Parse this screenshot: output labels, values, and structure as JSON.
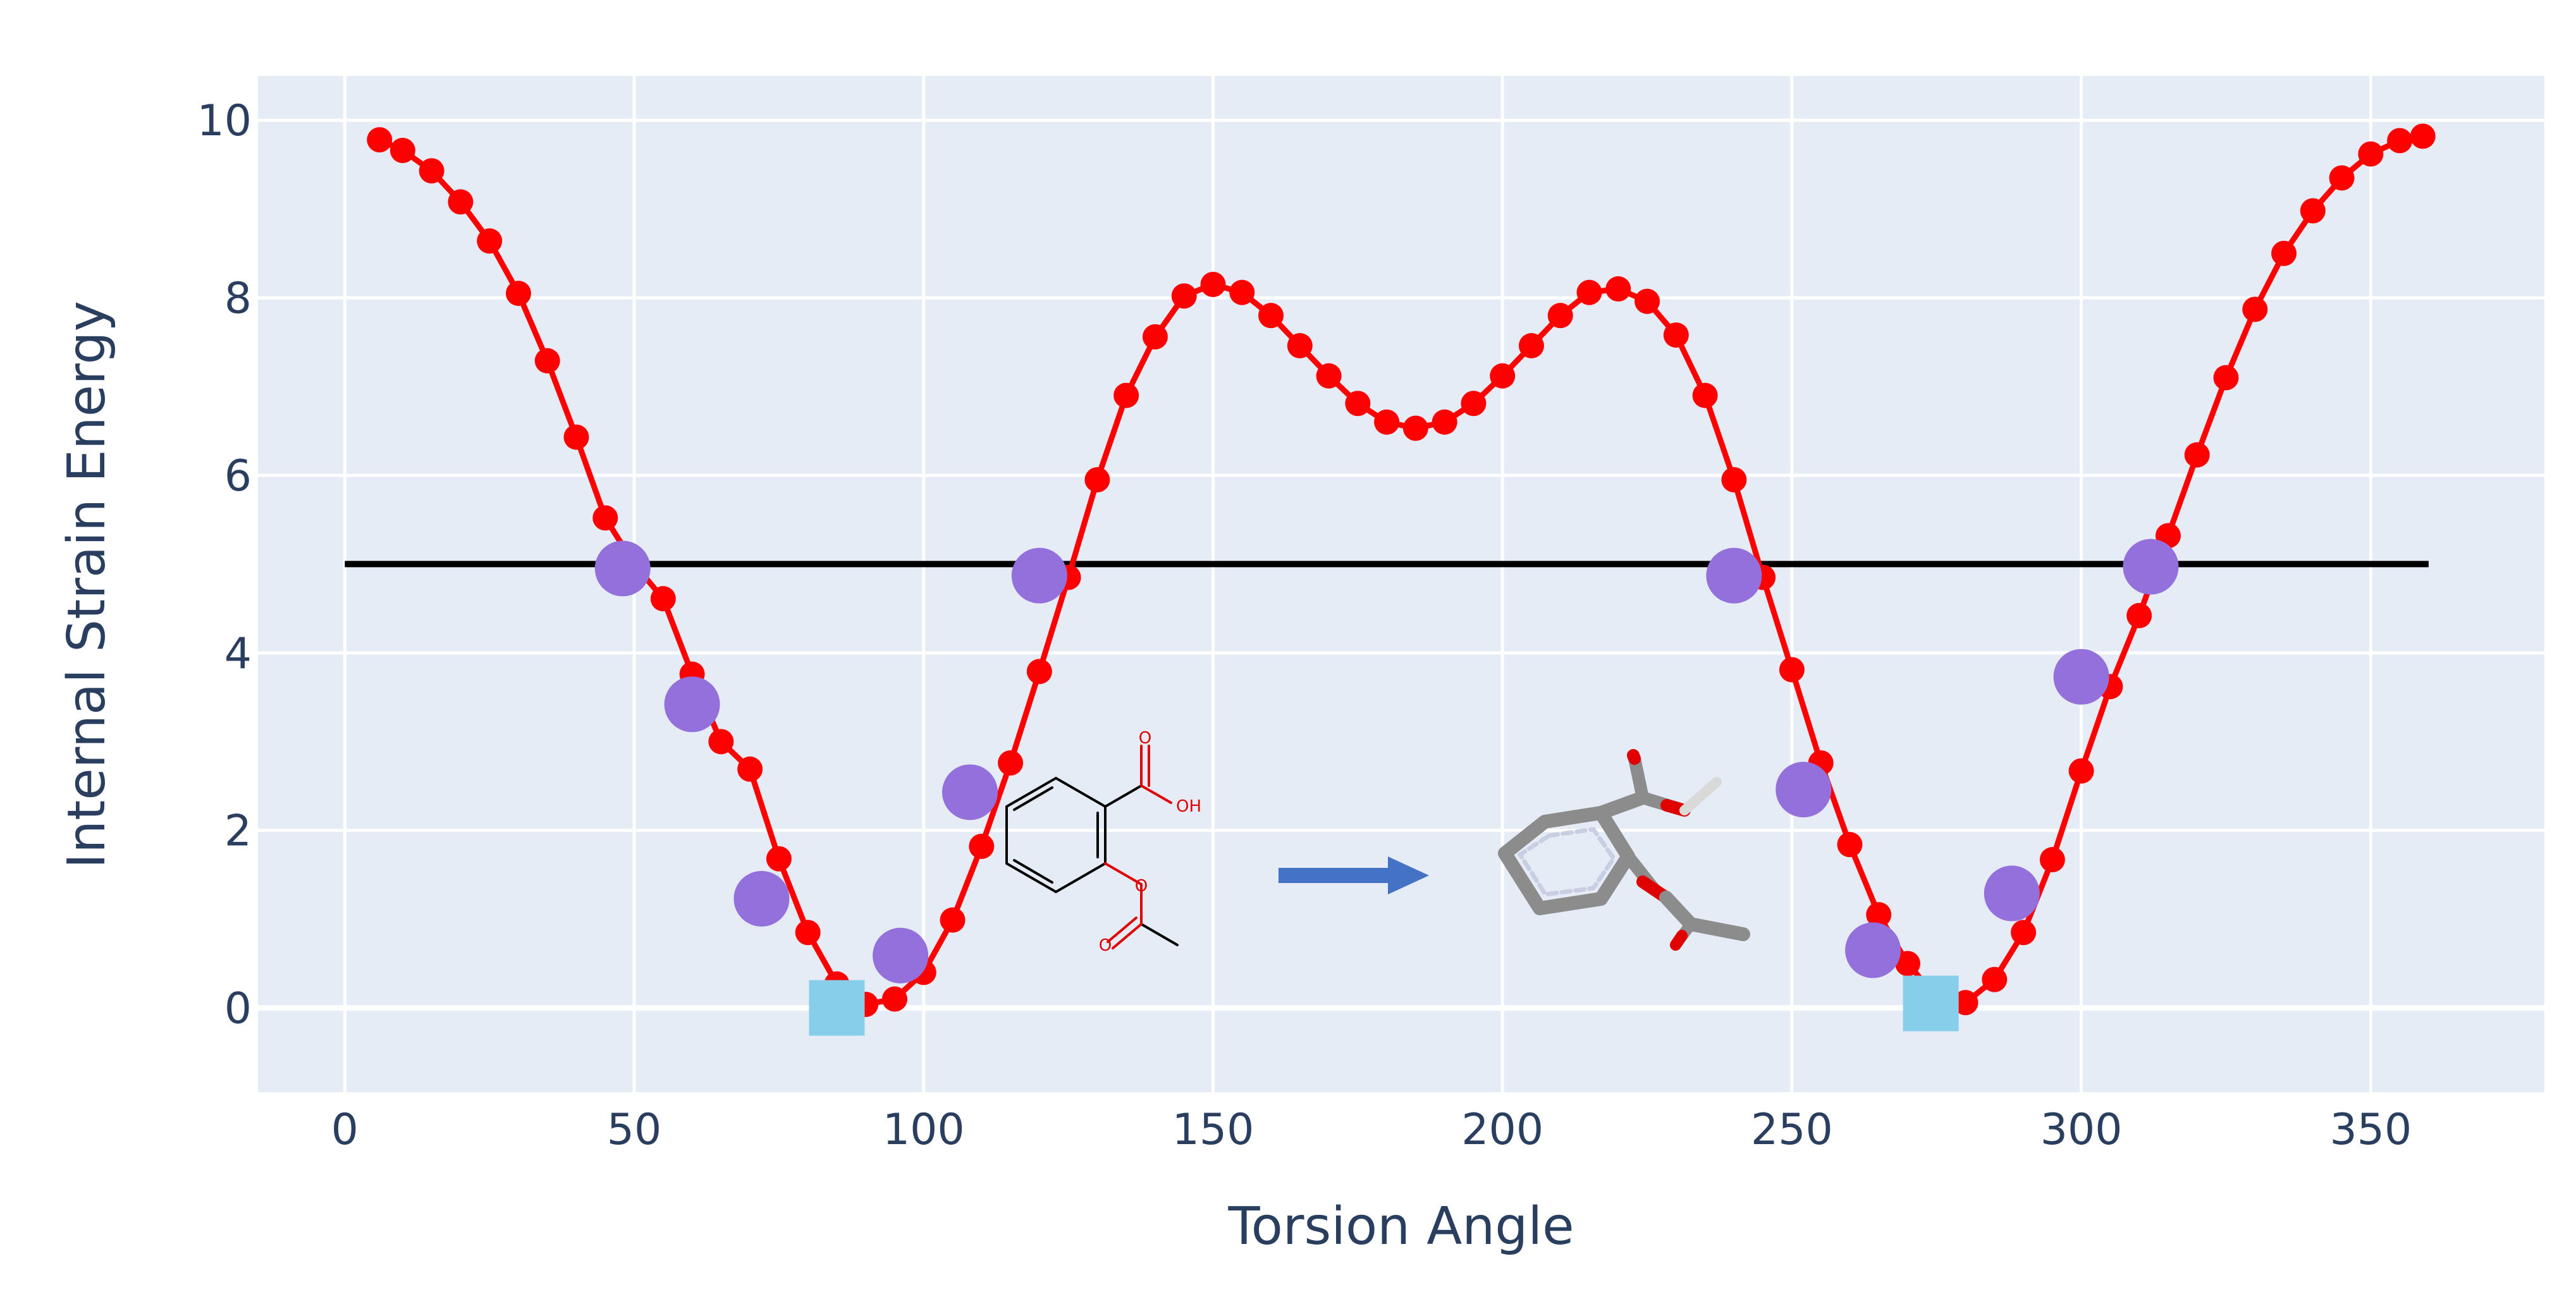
{
  "chart_data": {
    "type": "scatter",
    "title": "",
    "xlabel": "Torsion Angle",
    "ylabel": "Internal Strain Energy",
    "xlim": [
      -15,
      380
    ],
    "ylim": [
      -0.95,
      10.5
    ],
    "x_ticks": [
      0,
      50,
      100,
      150,
      200,
      250,
      300,
      350
    ],
    "y_ticks": [
      0,
      2,
      4,
      6,
      8,
      10
    ],
    "grid": true,
    "legend": "none",
    "series": [
      {
        "kind": "line+markers",
        "color": "#ff0000",
        "x": [
          6,
          10,
          15,
          20,
          25,
          30,
          35,
          40,
          45,
          50,
          55,
          60,
          65,
          70,
          75,
          80,
          85,
          90,
          95,
          100,
          105,
          110,
          115,
          120,
          125,
          130,
          135,
          140,
          145,
          150,
          155,
          160,
          165,
          170,
          175,
          180,
          185,
          190,
          195,
          200,
          205,
          210,
          215,
          220,
          225,
          230,
          235,
          240,
          245,
          250,
          255,
          260,
          265,
          270,
          275,
          280,
          285,
          290,
          295,
          300,
          305,
          310,
          315,
          320,
          325,
          330,
          335,
          340,
          345,
          350,
          355,
          359
        ],
        "y": [
          9.78,
          9.66,
          9.43,
          9.08,
          8.64,
          8.05,
          7.29,
          6.43,
          5.52,
          5.0,
          4.61,
          3.76,
          3.0,
          2.69,
          1.68,
          0.85,
          0.27,
          0.04,
          0.1,
          0.4,
          0.99,
          1.82,
          2.76,
          3.79,
          4.85,
          5.95,
          6.9,
          7.56,
          8.02,
          8.15,
          8.06,
          7.8,
          7.46,
          7.12,
          6.81,
          6.6,
          6.53,
          6.6,
          6.81,
          7.12,
          7.46,
          7.8,
          8.06,
          8.1,
          7.96,
          7.58,
          6.9,
          5.95,
          4.85,
          3.81,
          2.76,
          1.84,
          1.05,
          0.5,
          0.12,
          0.06,
          0.32,
          0.85,
          1.67,
          2.67,
          3.62,
          4.42,
          5.32,
          6.23,
          7.1,
          7.87,
          8.5,
          8.98,
          9.35,
          9.62,
          9.77,
          9.82
        ]
      },
      {
        "kind": "markers",
        "marker": "circle",
        "color": "#9370db",
        "x": [
          48,
          60,
          72,
          96,
          108,
          120,
          240,
          252,
          264,
          288,
          300,
          312
        ],
        "y": [
          4.95,
          3.42,
          1.23,
          0.59,
          2.43,
          4.87,
          4.87,
          2.46,
          0.65,
          1.29,
          3.73,
          4.97
        ]
      },
      {
        "kind": "markers",
        "marker": "square",
        "color": "#87ceeb",
        "x": [
          85,
          274
        ],
        "y": [
          0.0,
          0.05
        ]
      },
      {
        "kind": "line",
        "color": "#000000",
        "x": [
          0,
          360
        ],
        "y": [
          5.0,
          5.0
        ]
      }
    ],
    "annotations": {
      "molecule_2d_labels": [
        "O",
        "OH",
        "O",
        "O"
      ],
      "arrow_color": "#4472c4"
    }
  }
}
